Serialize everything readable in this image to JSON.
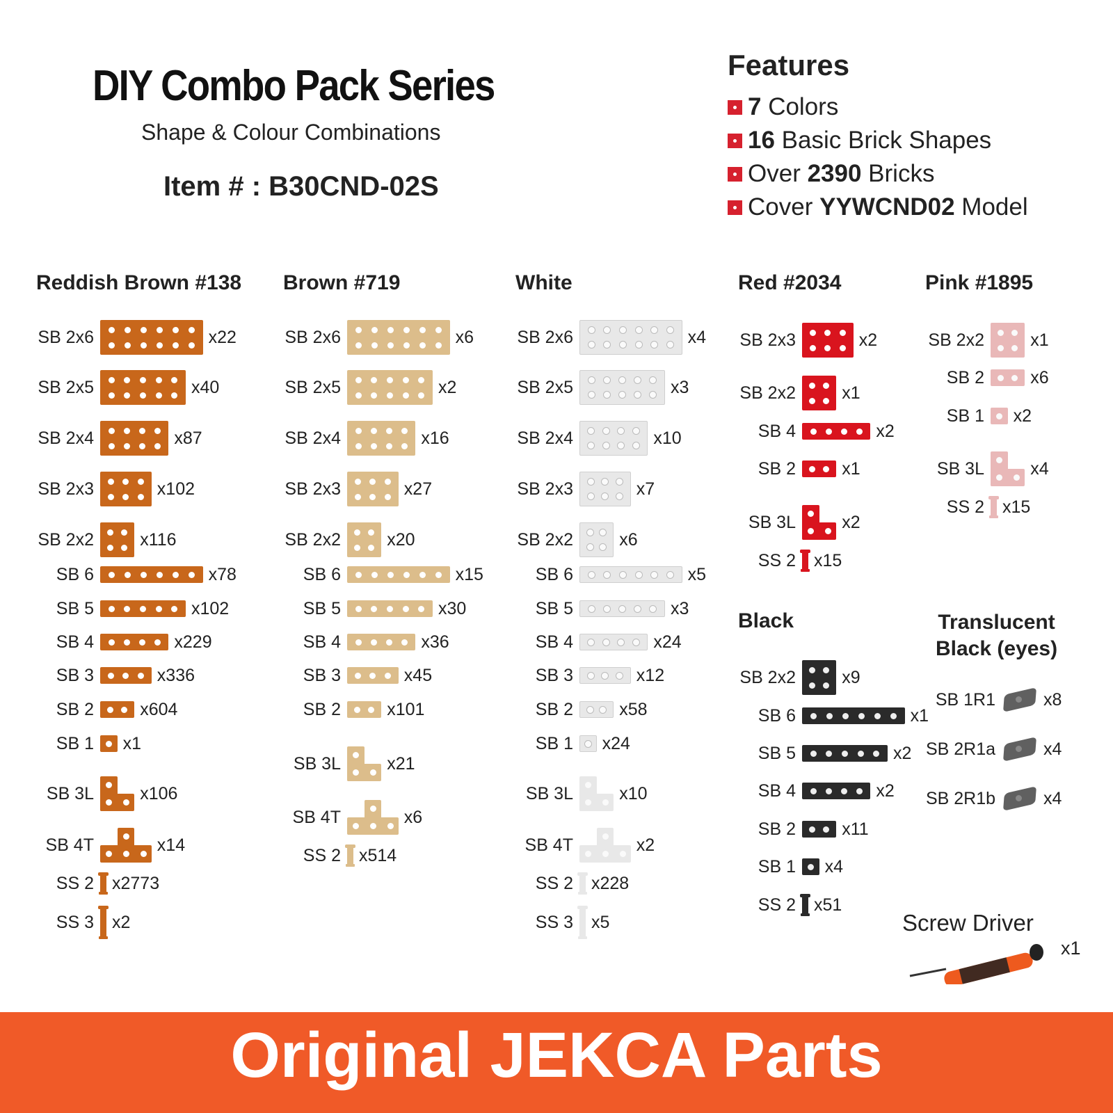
{
  "header": {
    "title": "DIY Combo Pack Series",
    "subtitle": "Shape & Colour Combinations",
    "item": "Item # : B30CND-02S"
  },
  "features": {
    "title": "Features",
    "items": [
      {
        "bold": "7",
        "text": " Colors",
        "prefix": ""
      },
      {
        "bold": "16",
        "text": " Basic Brick Shapes",
        "prefix": ""
      },
      {
        "bold": "2390",
        "text": " Bricks",
        "prefix": "Over "
      },
      {
        "bold": "YYWCND02",
        "text": " Model",
        "prefix": "Cover "
      }
    ],
    "bullet_color": "#d6212e"
  },
  "colors": {
    "reddish_brown": "#c8671b",
    "brown": "#dcbd8b",
    "white": "#e8e8e8",
    "red": "#d9141e",
    "pink": "#e9b8b8",
    "black": "#2a2a2a",
    "banner": "#f05a28"
  },
  "columns": [
    {
      "title": "Reddish Brown #138"
    },
    {
      "title": "Brown #719"
    },
    {
      "title": "White"
    },
    {
      "title": "Red #2034"
    },
    {
      "title": "Pink #1895"
    },
    {
      "title": "Black"
    },
    {
      "title": "Translucent\nBlack (eyes)"
    }
  ],
  "reddish_brown": [
    {
      "label": "SB 2x6",
      "qty": "x22"
    },
    {
      "label": "SB 2x5",
      "qty": "x40"
    },
    {
      "label": "SB 2x4",
      "qty": "x87"
    },
    {
      "label": "SB 2x3",
      "qty": "x102"
    },
    {
      "label": "SB 2x2",
      "qty": "x116"
    },
    {
      "label": "SB 6",
      "qty": "x78"
    },
    {
      "label": "SB 5",
      "qty": "x102"
    },
    {
      "label": "SB 4",
      "qty": "x229"
    },
    {
      "label": "SB 3",
      "qty": "x336"
    },
    {
      "label": "SB 2",
      "qty": "x604"
    },
    {
      "label": "SB 1",
      "qty": "x1"
    },
    {
      "label": "SB 3L",
      "qty": "x106"
    },
    {
      "label": "SB 4T",
      "qty": "x14"
    },
    {
      "label": "SS 2",
      "qty": "x2773"
    },
    {
      "label": "SS 3",
      "qty": "x2"
    }
  ],
  "brown": [
    {
      "label": "SB 2x6",
      "qty": "x6"
    },
    {
      "label": "SB 2x5",
      "qty": "x2"
    },
    {
      "label": "SB 2x4",
      "qty": "x16"
    },
    {
      "label": "SB 2x3",
      "qty": "x27"
    },
    {
      "label": "SB 2x2",
      "qty": "x20"
    },
    {
      "label": "SB 6",
      "qty": "x15"
    },
    {
      "label": "SB 5",
      "qty": "x30"
    },
    {
      "label": "SB 4",
      "qty": "x36"
    },
    {
      "label": "SB 3",
      "qty": "x45"
    },
    {
      "label": "SB 2",
      "qty": "x101"
    },
    {
      "label": "SB 3L",
      "qty": "x21"
    },
    {
      "label": "SB 4T",
      "qty": "x6"
    },
    {
      "label": "SS 2",
      "qty": "x514"
    }
  ],
  "white": [
    {
      "label": "SB 2x6",
      "qty": "x4"
    },
    {
      "label": "SB 2x5",
      "qty": "x3"
    },
    {
      "label": "SB 2x4",
      "qty": "x10"
    },
    {
      "label": "SB 2x3",
      "qty": "x7"
    },
    {
      "label": "SB 2x2",
      "qty": "x6"
    },
    {
      "label": "SB 6",
      "qty": "x5"
    },
    {
      "label": "SB 5",
      "qty": "x3"
    },
    {
      "label": "SB 4",
      "qty": "x24"
    },
    {
      "label": "SB 3",
      "qty": "x12"
    },
    {
      "label": "SB 2",
      "qty": "x58"
    },
    {
      "label": "SB 1",
      "qty": "x24"
    },
    {
      "label": "SB 3L",
      "qty": "x10"
    },
    {
      "label": "SB 4T",
      "qty": "x2"
    },
    {
      "label": "SS 2",
      "qty": "x228"
    },
    {
      "label": "SS 3",
      "qty": "x5"
    }
  ],
  "red": [
    {
      "label": "SB 2x3",
      "qty": "x2"
    },
    {
      "label": "SB 2x2",
      "qty": "x1"
    },
    {
      "label": "SB 4",
      "qty": "x2"
    },
    {
      "label": "SB 2",
      "qty": "x1"
    },
    {
      "label": "SB 3L",
      "qty": "x2"
    },
    {
      "label": "SS 2",
      "qty": "x15"
    }
  ],
  "pink": [
    {
      "label": "SB 2x2",
      "qty": "x1"
    },
    {
      "label": "SB 2",
      "qty": "x6"
    },
    {
      "label": "SB 1",
      "qty": "x2"
    },
    {
      "label": "SB 3L",
      "qty": "x4"
    },
    {
      "label": "SS 2",
      "qty": "x15"
    }
  ],
  "black": [
    {
      "label": "SB 2x2",
      "qty": "x9"
    },
    {
      "label": "SB 6",
      "qty": "x1"
    },
    {
      "label": "SB 5",
      "qty": "x2"
    },
    {
      "label": "SB 4",
      "qty": "x2"
    },
    {
      "label": "SB 2",
      "qty": "x11"
    },
    {
      "label": "SB 1",
      "qty": "x4"
    },
    {
      "label": "SS 2",
      "qty": "x51"
    }
  ],
  "translucent": [
    {
      "label": "SB 1R1",
      "qty": "x8"
    },
    {
      "label": "SB 2R1a",
      "qty": "x4"
    },
    {
      "label": "SB 2R1b",
      "qty": "x4"
    }
  ],
  "screwdriver": {
    "label": "Screw Driver",
    "qty": "x1"
  },
  "banner": {
    "text": "Original JEKCA Parts"
  }
}
